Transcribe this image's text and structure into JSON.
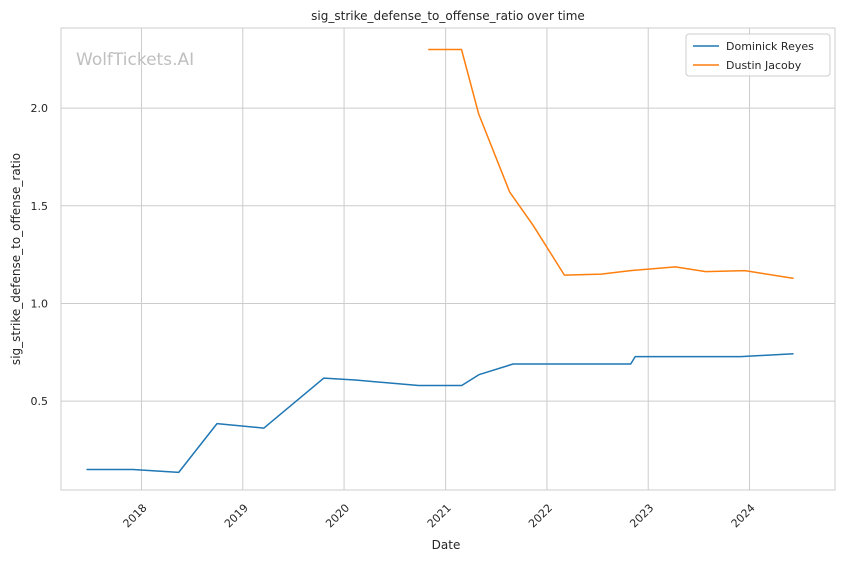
{
  "chart_data": {
    "type": "line",
    "title": "sig_strike_defense_to_offense_ratio over time",
    "xlabel": "Date",
    "ylabel": "sig_strike_defense_to_offense_ratio",
    "watermark": "WolfTickets.AI",
    "grid": true,
    "legend": "top-right",
    "x_ticks": [
      "2018",
      "2019",
      "2020",
      "2021",
      "2022",
      "2023",
      "2024"
    ],
    "y_ticks": [
      0.5,
      1.0,
      1.5,
      2.0
    ],
    "y_tick_labels": [
      "0.5",
      "1.0",
      "1.5",
      "2.0"
    ],
    "xlim": [
      "2017-03-17",
      "2024-11-04"
    ],
    "ylim": [
      0.045,
      2.41
    ],
    "series": [
      {
        "name": "Dominick Reyes",
        "color": "#1f77b4",
        "points": [
          [
            "2017-06-17",
            0.15
          ],
          [
            "2017-12-01",
            0.15
          ],
          [
            "2018-05-15",
            0.135
          ],
          [
            "2018-09-30",
            0.385
          ],
          [
            "2019-03-18",
            0.362
          ],
          [
            "2019-10-20",
            0.618
          ],
          [
            "2020-02-10",
            0.608
          ],
          [
            "2020-09-26",
            0.58
          ],
          [
            "2021-02-28",
            0.58
          ],
          [
            "2021-05-01",
            0.635
          ],
          [
            "2021-09-01",
            0.69
          ],
          [
            "2022-03-01",
            0.69
          ],
          [
            "2022-10-30",
            0.69
          ],
          [
            "2022-11-15",
            0.728
          ],
          [
            "2023-12-01",
            0.728
          ],
          [
            "2024-06-08",
            0.742
          ]
        ]
      },
      {
        "name": "Dustin Jacoby",
        "color": "#ff7f0e",
        "points": [
          [
            "2020-10-30",
            2.3
          ],
          [
            "2021-02-27",
            2.3
          ],
          [
            "2021-04-30",
            1.97
          ],
          [
            "2021-08-20",
            1.57
          ],
          [
            "2021-11-12",
            1.4
          ],
          [
            "2022-03-05",
            1.145
          ],
          [
            "2022-07-16",
            1.15
          ],
          [
            "2022-10-29",
            1.168
          ],
          [
            "2023-04-09",
            1.187
          ],
          [
            "2023-07-27",
            1.163
          ],
          [
            "2023-12-15",
            1.168
          ],
          [
            "2024-06-08",
            1.128
          ]
        ]
      }
    ]
  }
}
